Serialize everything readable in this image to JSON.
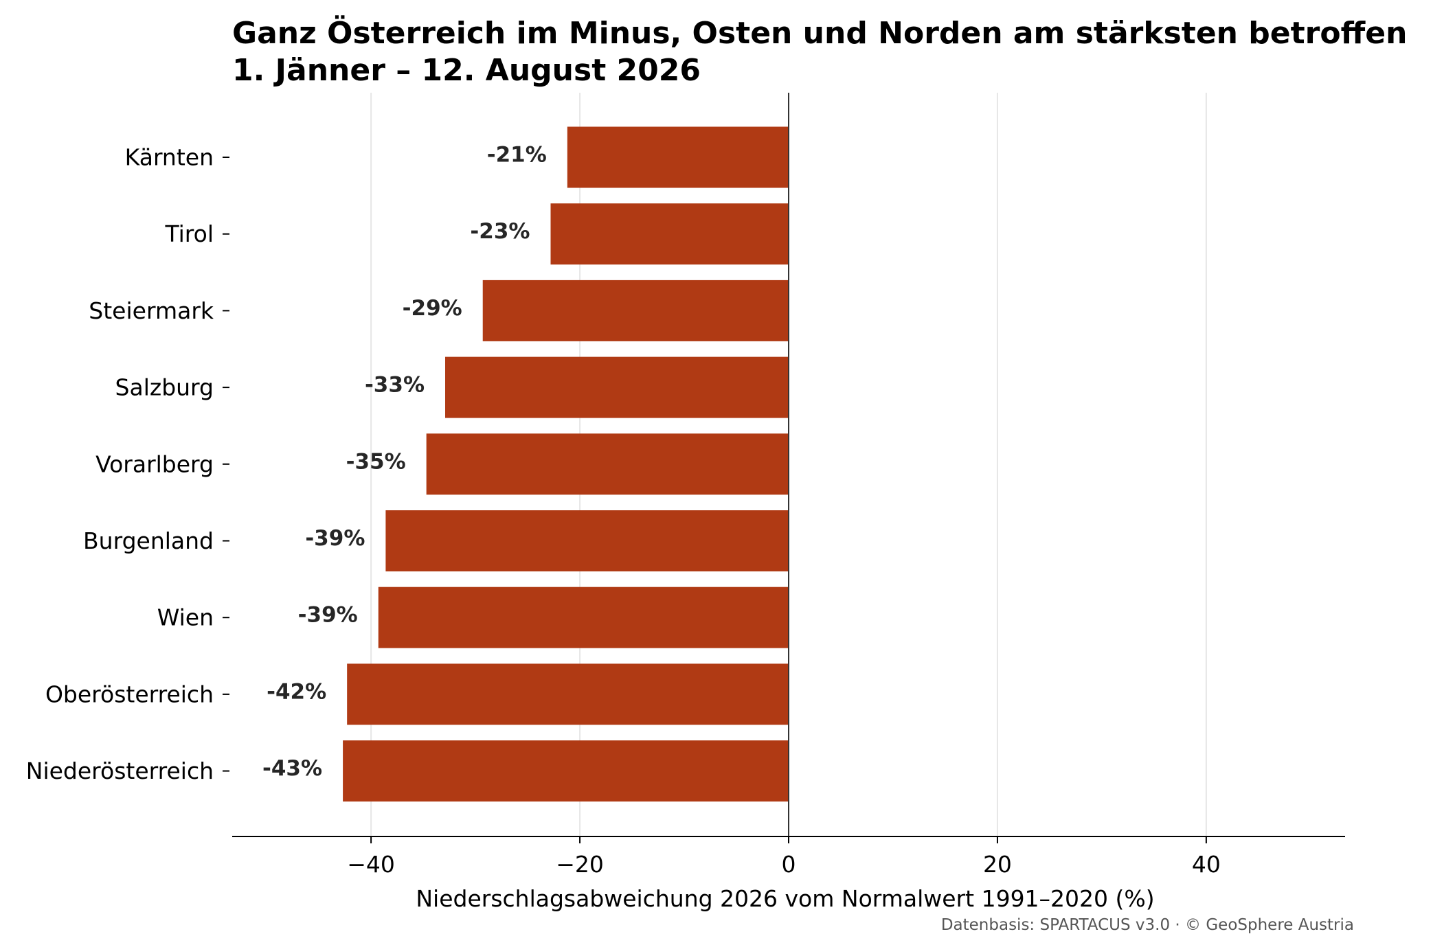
{
  "chart_data": {
    "type": "bar",
    "orientation": "horizontal",
    "title": "Ganz Österreich im Minus, Osten und Norden am stärksten betroffen",
    "subtitle": "1. Jänner – 12. August 2026",
    "xlabel": "Niederschlagsabweichung 2026 vom Normalwert 1991–2020 (%)",
    "ylabel": "",
    "categories": [
      "Kärnten",
      "Tirol",
      "Steiermark",
      "Salzburg",
      "Vorarlberg",
      "Burgenland",
      "Wien",
      "Oberösterreich",
      "Niederösterreich"
    ],
    "values": [
      -21.2,
      -22.8,
      -29.3,
      -32.9,
      -34.7,
      -38.6,
      -39.3,
      -42.3,
      -42.7
    ],
    "data_labels": [
      "-21%",
      "-23%",
      "-29%",
      "-33%",
      "-35%",
      "-39%",
      "-39%",
      "-42%",
      "-43%"
    ],
    "xlim": [
      -53.3,
      53.3
    ],
    "xticks": [
      -40,
      -20,
      0,
      20,
      40
    ],
    "xtick_labels": [
      "−40",
      "−20",
      "0",
      "20",
      "40"
    ],
    "grid": "vertical",
    "bar_color": "#b03a14",
    "source": "Datenbasis: SPARTACUS v3.0 · © GeoSphere Austria"
  }
}
